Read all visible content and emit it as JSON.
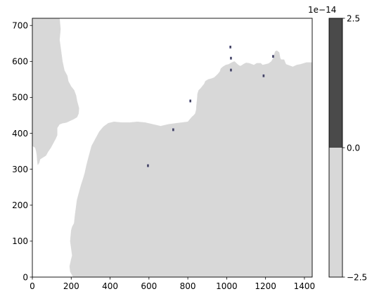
{
  "chart_data": {
    "type": "heatmap",
    "title": "",
    "xlabel": "",
    "ylabel": "",
    "xlim": [
      0,
      1440
    ],
    "ylim": [
      0,
      720
    ],
    "xticks": [
      0,
      200,
      400,
      600,
      800,
      1000,
      1200,
      1400
    ],
    "yticks": [
      0,
      100,
      200,
      300,
      400,
      500,
      600,
      700
    ],
    "colors": {
      "land": "#d8d8d8",
      "water": "#ffffff",
      "positive": "#4a4a4a",
      "marker_edge": "#3a3a7a"
    },
    "colorbar": {
      "levels": [
        -2.5,
        0.0,
        2.5
      ],
      "tick_labels": [
        "−2.5",
        "0.0",
        "2.5"
      ],
      "offset_label": "1e−14",
      "band_colors": [
        "#d8d8d8",
        "#4a4a4a"
      ]
    },
    "land_left": [
      [
        140,
        720
      ],
      [
        145,
        690
      ],
      [
        140,
        660
      ],
      [
        145,
        640
      ],
      [
        150,
        620
      ],
      [
        155,
        600
      ],
      [
        165,
        575
      ],
      [
        180,
        560
      ],
      [
        185,
        545
      ],
      [
        200,
        530
      ],
      [
        215,
        520
      ],
      [
        225,
        505
      ],
      [
        230,
        490
      ],
      [
        240,
        470
      ],
      [
        238,
        455
      ],
      [
        230,
        445
      ],
      [
        215,
        440
      ],
      [
        195,
        435
      ],
      [
        175,
        430
      ],
      [
        155,
        428
      ],
      [
        140,
        425
      ],
      [
        128,
        415
      ],
      [
        128,
        395
      ],
      [
        120,
        385
      ],
      [
        110,
        375
      ],
      [
        95,
        360
      ],
      [
        80,
        348
      ],
      [
        70,
        338
      ],
      [
        55,
        333
      ],
      [
        40,
        328
      ],
      [
        35,
        318
      ],
      [
        28,
        312
      ],
      [
        25,
        325
      ],
      [
        23,
        340
      ],
      [
        20,
        350
      ],
      [
        15,
        360
      ],
      [
        0,
        365
      ],
      [
        0,
        720
      ]
    ],
    "land_right": [
      [
        210,
        0
      ],
      [
        200,
        10
      ],
      [
        195,
        15
      ],
      [
        192,
        30
      ],
      [
        200,
        50
      ],
      [
        205,
        60
      ],
      [
        200,
        80
      ],
      [
        195,
        100
      ],
      [
        200,
        130
      ],
      [
        205,
        140
      ],
      [
        215,
        150
      ],
      [
        220,
        175
      ],
      [
        225,
        195
      ],
      [
        230,
        215
      ],
      [
        240,
        235
      ],
      [
        250,
        255
      ],
      [
        262,
        275
      ],
      [
        270,
        290
      ],
      [
        278,
        310
      ],
      [
        285,
        325
      ],
      [
        295,
        345
      ],
      [
        305,
        365
      ],
      [
        315,
        375
      ],
      [
        330,
        390
      ],
      [
        345,
        405
      ],
      [
        365,
        418
      ],
      [
        390,
        428
      ],
      [
        420,
        432
      ],
      [
        460,
        430
      ],
      [
        500,
        430
      ],
      [
        540,
        432
      ],
      [
        580,
        430
      ],
      [
        620,
        425
      ],
      [
        660,
        420
      ],
      [
        700,
        425
      ],
      [
        740,
        428
      ],
      [
        770,
        430
      ],
      [
        800,
        432
      ],
      [
        812,
        440
      ],
      [
        820,
        445
      ],
      [
        830,
        450
      ],
      [
        838,
        455
      ],
      [
        843,
        465
      ],
      [
        845,
        480
      ],
      [
        848,
        495
      ],
      [
        850,
        510
      ],
      [
        856,
        520
      ],
      [
        866,
        525
      ],
      [
        876,
        532
      ],
      [
        885,
        538
      ],
      [
        890,
        545
      ],
      [
        905,
        550
      ],
      [
        920,
        552
      ],
      [
        935,
        555
      ],
      [
        945,
        560
      ],
      [
        955,
        565
      ],
      [
        965,
        572
      ],
      [
        970,
        580
      ],
      [
        980,
        585
      ],
      [
        995,
        590
      ],
      [
        1010,
        592
      ],
      [
        1020,
        595
      ],
      [
        1030,
        598
      ],
      [
        1040,
        600
      ],
      [
        1050,
        595
      ],
      [
        1060,
        590
      ],
      [
        1070,
        587
      ],
      [
        1080,
        590
      ],
      [
        1088,
        593
      ],
      [
        1100,
        596
      ],
      [
        1115,
        595
      ],
      [
        1140,
        590
      ],
      [
        1155,
        595
      ],
      [
        1175,
        595
      ],
      [
        1185,
        590
      ],
      [
        1200,
        592
      ],
      [
        1215,
        594
      ],
      [
        1230,
        600
      ],
      [
        1240,
        610
      ],
      [
        1245,
        620
      ],
      [
        1250,
        628
      ],
      [
        1258,
        630
      ],
      [
        1270,
        625
      ],
      [
        1275,
        610
      ],
      [
        1280,
        605
      ],
      [
        1295,
        605
      ],
      [
        1305,
        592
      ],
      [
        1340,
        585
      ],
      [
        1360,
        590
      ],
      [
        1380,
        592
      ],
      [
        1410,
        597
      ],
      [
        1440,
        597
      ],
      [
        1440,
        0
      ]
    ],
    "markers": [
      {
        "x": 1019,
        "y": 640,
        "value": 2.5e-14
      },
      {
        "x": 1239,
        "y": 614,
        "value": 2.5e-14
      },
      {
        "x": 1022,
        "y": 609,
        "value": 2.5e-14
      },
      {
        "x": 1022,
        "y": 576,
        "value": 2.5e-14
      },
      {
        "x": 1190,
        "y": 560,
        "value": 2.5e-14
      },
      {
        "x": 813,
        "y": 490,
        "value": 2.5e-14
      },
      {
        "x": 725,
        "y": 410,
        "value": 2.5e-14
      },
      {
        "x": 595,
        "y": 310,
        "value": 2.5e-14
      }
    ]
  }
}
